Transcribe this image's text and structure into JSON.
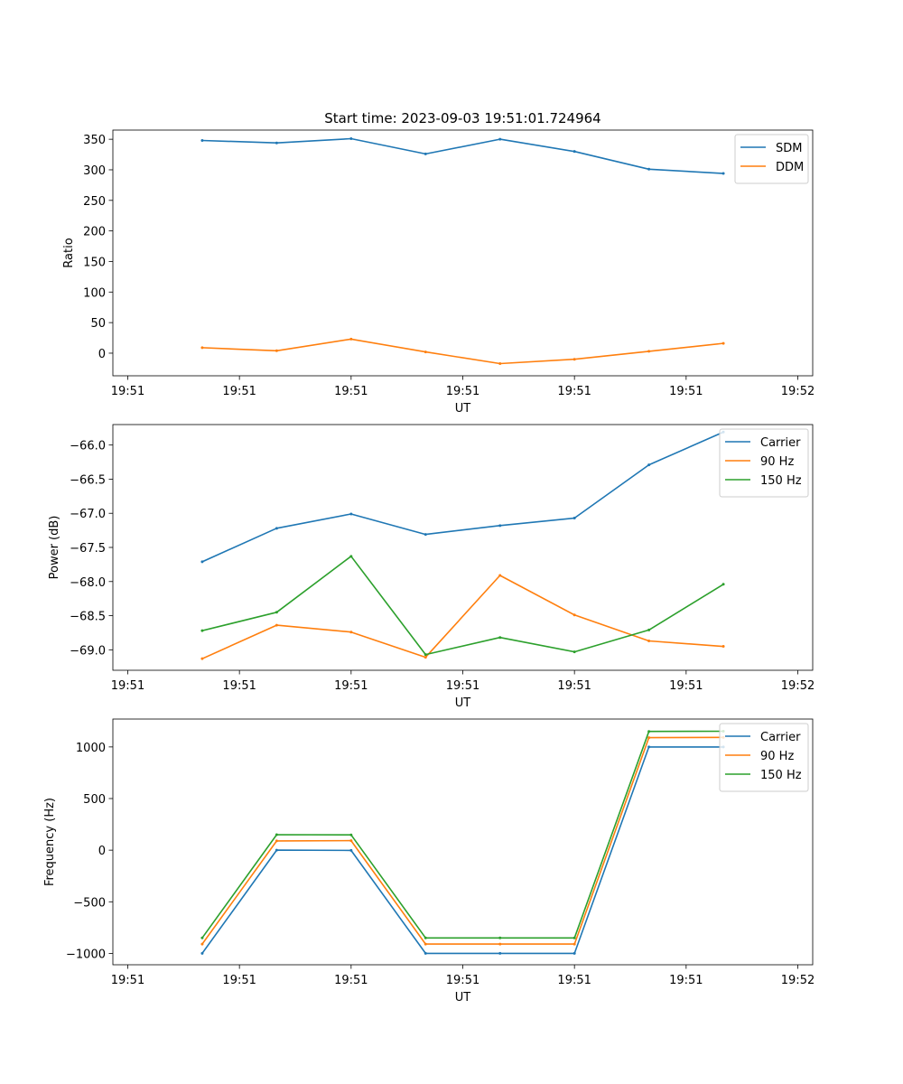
{
  "figure_title": "Start time: 2023-09-03 19:51:01.724964",
  "colors": {
    "blue": "#1f77b4",
    "orange": "#ff7f0e",
    "green": "#2ca02c",
    "axis": "#000000",
    "legend_border": "#cccccc"
  },
  "chart_data": [
    {
      "type": "line",
      "title": "Start time: 2023-09-03 19:51:01.724964",
      "xlabel": "UT",
      "ylabel": "Ratio",
      "x": [
        1,
        2,
        3,
        4,
        5,
        6,
        7,
        8
      ],
      "xlim": [
        -0.2,
        9.2
      ],
      "xticks": [
        0,
        1.5,
        3,
        4.5,
        6,
        7.5,
        9
      ],
      "xtick_labels": [
        "19:51",
        "19:51",
        "19:51",
        "19:51",
        "19:51",
        "19:51",
        "19:52"
      ],
      "ylim": [
        -37,
        365
      ],
      "yticks": [
        0,
        50,
        100,
        150,
        200,
        250,
        300,
        350
      ],
      "ytick_labels": [
        "0",
        "50",
        "100",
        "150",
        "200",
        "250",
        "300",
        "350"
      ],
      "legend_loc": "upper right",
      "series": [
        {
          "name": "SDM",
          "color": "#1f77b4",
          "values": [
            348,
            344,
            351,
            326,
            350,
            330,
            301,
            294
          ]
        },
        {
          "name": "DDM",
          "color": "#ff7f0e",
          "values": [
            9,
            4,
            23,
            2,
            -17,
            -10,
            3,
            16
          ]
        }
      ]
    },
    {
      "type": "line",
      "title": "",
      "xlabel": "UT",
      "ylabel": "Power (dB)",
      "x": [
        1,
        2,
        3,
        4,
        5,
        6,
        7,
        8
      ],
      "xlim": [
        -0.2,
        9.2
      ],
      "xticks": [
        0,
        1.5,
        3,
        4.5,
        6,
        7.5,
        9
      ],
      "xtick_labels": [
        "19:51",
        "19:51",
        "19:51",
        "19:51",
        "19:51",
        "19:51",
        "19:52"
      ],
      "ylim": [
        -69.3,
        -65.7
      ],
      "yticks": [
        -69.0,
        -68.5,
        -68.0,
        -67.5,
        -67.0,
        -66.5,
        -66.0
      ],
      "ytick_labels": [
        "−69.0",
        "−68.5",
        "−68.0",
        "−67.5",
        "−67.0",
        "−66.5",
        "−66.0"
      ],
      "legend_loc": "upper right",
      "series": [
        {
          "name": "Carrier",
          "color": "#1f77b4",
          "values": [
            -67.71,
            -67.22,
            -67.01,
            -67.31,
            -67.18,
            -67.07,
            -66.29,
            -65.81
          ]
        },
        {
          "name": "90 Hz",
          "color": "#ff7f0e",
          "values": [
            -69.13,
            -68.64,
            -68.74,
            -69.11,
            -67.91,
            -68.49,
            -68.87,
            -68.95
          ]
        },
        {
          "name": "150 Hz",
          "color": "#2ca02c",
          "values": [
            -68.72,
            -68.45,
            -67.63,
            -69.07,
            -68.82,
            -69.03,
            -68.71,
            -68.04
          ]
        }
      ]
    },
    {
      "type": "line",
      "title": "",
      "xlabel": "UT",
      "ylabel": "Frequency (Hz)",
      "x": [
        1,
        2,
        3,
        4,
        5,
        6,
        7,
        8
      ],
      "xlim": [
        -0.2,
        9.2
      ],
      "xticks": [
        0,
        1.5,
        3,
        4.5,
        6,
        7.5,
        9
      ],
      "xtick_labels": [
        "19:51",
        "19:51",
        "19:51",
        "19:51",
        "19:51",
        "19:51",
        "19:52"
      ],
      "ylim": [
        -1110,
        1270
      ],
      "yticks": [
        -1000,
        -500,
        0,
        500,
        1000
      ],
      "ytick_labels": [
        "−1000",
        "−500",
        "0",
        "500",
        "1000"
      ],
      "legend_loc": "upper right",
      "series": [
        {
          "name": "Carrier",
          "color": "#1f77b4",
          "values": [
            -1000,
            0,
            -2,
            -1000,
            -1000,
            -1000,
            1000,
            1000
          ]
        },
        {
          "name": "90 Hz",
          "color": "#ff7f0e",
          "values": [
            -910,
            90,
            92,
            -910,
            -910,
            -910,
            1090,
            1092
          ]
        },
        {
          "name": "150 Hz",
          "color": "#2ca02c",
          "values": [
            -850,
            150,
            148,
            -850,
            -850,
            -850,
            1150,
            1152
          ]
        }
      ]
    }
  ]
}
